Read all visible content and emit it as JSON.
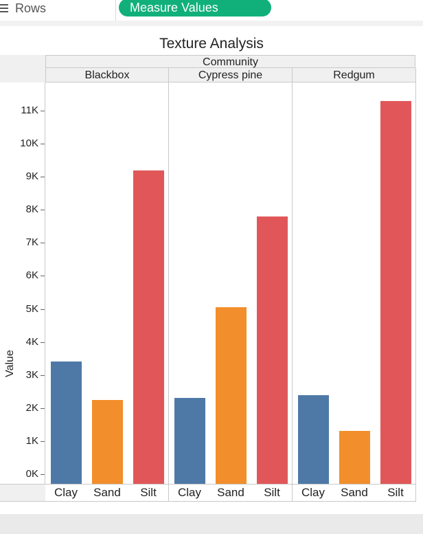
{
  "shelf": {
    "rows_label": "Rows",
    "pill_label": "Measure Values",
    "pill_color": "#11b07a"
  },
  "chart_data": {
    "type": "bar",
    "title": "Texture Analysis",
    "column_header": "Community",
    "ylabel": "Value",
    "ylim": [
      0,
      11700
    ],
    "yticks": [
      {
        "value": 0,
        "label": "0K"
      },
      {
        "value": 1000,
        "label": "1K"
      },
      {
        "value": 2000,
        "label": "2K"
      },
      {
        "value": 3000,
        "label": "3K"
      },
      {
        "value": 4000,
        "label": "4K"
      },
      {
        "value": 5000,
        "label": "5K"
      },
      {
        "value": 6000,
        "label": "6K"
      },
      {
        "value": 7000,
        "label": "7K"
      },
      {
        "value": 8000,
        "label": "8K"
      },
      {
        "value": 9000,
        "label": "9K"
      },
      {
        "value": 10000,
        "label": "10K"
      },
      {
        "value": 11000,
        "label": "11K"
      }
    ],
    "categories": [
      "Clay",
      "Sand",
      "Silt"
    ],
    "colors": {
      "Clay": "#4e79a7",
      "Sand": "#f28e2b",
      "Silt": "#e15759"
    },
    "panes": [
      {
        "name": "Blackbox",
        "values": [
          3400,
          2250,
          9200
        ]
      },
      {
        "name": "Cypress pine",
        "values": [
          2300,
          5050,
          7800
        ]
      },
      {
        "name": "Redgum",
        "values": [
          2400,
          1300,
          11300
        ]
      }
    ]
  }
}
